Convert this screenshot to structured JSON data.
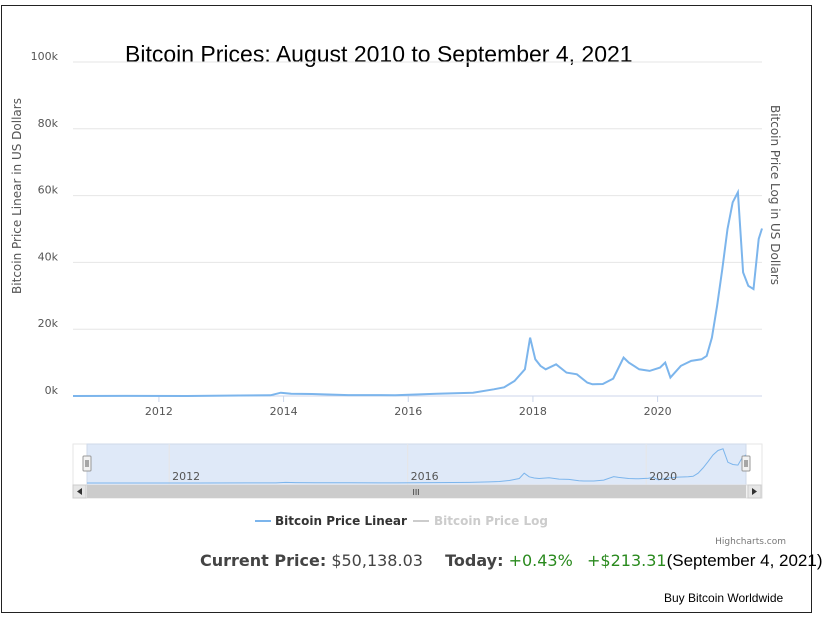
{
  "chart_data": {
    "type": "line",
    "title": "Bitcoin Prices: August 2010 to September 4, 2021",
    "ylabel": "Bitcoin Price Linear in US Dollars",
    "ylabel_right": "Bitcoin Price Log in US Dollars",
    "ylim": [
      0,
      100000
    ],
    "xlim": [
      "2010-08",
      "2021-09-04"
    ],
    "y_ticks": [
      "0k",
      "20k",
      "40k",
      "60k",
      "80k",
      "100k"
    ],
    "x_ticks": [
      "2012",
      "2014",
      "2016",
      "2018",
      "2020"
    ],
    "grid": true,
    "legend_position": "bottom-center",
    "series": [
      {
        "name": "Bitcoin Price Linear",
        "color": "#7cb5ec",
        "visible": true,
        "x": [
          "2010-08",
          "2011-06",
          "2012-06",
          "2013-04",
          "2013-10",
          "2013-12",
          "2014-02",
          "2014-06",
          "2015-01",
          "2015-10",
          "2016-06",
          "2017-01",
          "2017-05",
          "2017-07",
          "2017-09",
          "2017-11",
          "2017-12",
          "2018-01",
          "2018-02",
          "2018-03",
          "2018-05",
          "2018-07",
          "2018-09",
          "2018-11",
          "2018-12",
          "2019-02",
          "2019-04",
          "2019-06",
          "2019-07",
          "2019-09",
          "2019-11",
          "2020-01",
          "2020-02",
          "2020-03",
          "2020-05",
          "2020-07",
          "2020-09",
          "2020-10",
          "2020-11",
          "2020-12",
          "2021-01",
          "2021-02",
          "2021-03",
          "2021-04",
          "2021-05",
          "2021-06",
          "2021-07",
          "2021-08",
          "2021-09-04"
        ],
        "values": [
          0,
          15,
          5,
          150,
          200,
          1000,
          700,
          600,
          280,
          250,
          700,
          1000,
          2000,
          2600,
          4500,
          8000,
          17500,
          11000,
          9000,
          8000,
          9500,
          7000,
          6500,
          4000,
          3500,
          3600,
          5200,
          11500,
          10000,
          8000,
          7500,
          8500,
          10000,
          5500,
          9000,
          10500,
          11000,
          12000,
          17500,
          27000,
          38000,
          50000,
          58000,
          61000,
          37000,
          33000,
          32000,
          47000,
          50138
        ]
      },
      {
        "name": "Bitcoin Price Log",
        "color": "#cccccc",
        "visible": false
      }
    ],
    "navigator_ticks": [
      "2012",
      "2016",
      "2020"
    ]
  },
  "info": {
    "current_price_label": "Current Price:",
    "current_price_value": "$50,138.03",
    "today_label": "Today:",
    "change_pct": "+0.43%",
    "change_abs": "+$213.31",
    "date": "(September 4, 2021)"
  },
  "credits": "Highcharts.com",
  "buy_link": "Buy Bitcoin Worldwide",
  "navigator": {
    "scroll_grip": "III"
  },
  "colors": {
    "line": "#7cb5ec",
    "positive": "#2a8a1e",
    "legend_hidden": "#cccccc"
  }
}
